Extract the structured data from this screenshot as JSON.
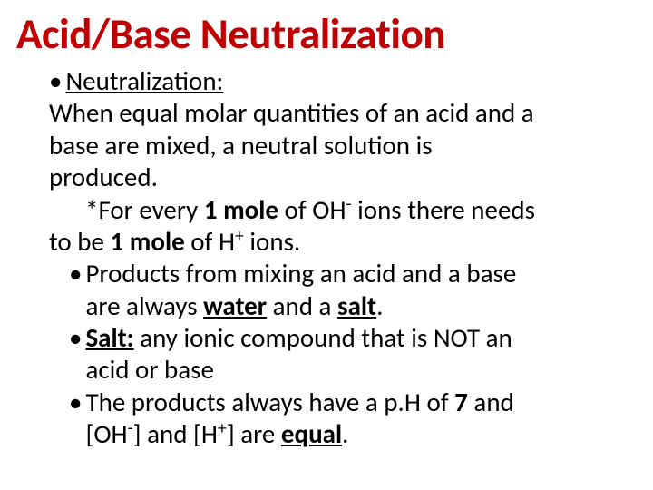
{
  "title_color": "#c00000",
  "text_color": "#000000",
  "background_color": "#ffffff",
  "title": "Acid/Base Neutralization",
  "main": {
    "term": "Neutralization:",
    "definition_l1": "When equal molar quantities of an acid and a",
    "definition_l2": "base are mixed, a neutral solution is",
    "definition_l3": "produced.",
    "note_l1_pre": "*For every ",
    "note_l1_bold1": "1 mole",
    "note_l1_mid": " of OH",
    "note_l1_sup1": "-",
    "note_l1_post": " ions there needs",
    "note_l2_pre": "to be ",
    "note_l2_bold1": "1 mole",
    "note_l2_mid": " of H",
    "note_l2_sup1": "+",
    "note_l2_post": " ions.",
    "sub1_l1_a": "Products from mixing an acid and a base",
    "sub1_l2_a": "are always ",
    "sub1_l2_b": "water",
    "sub1_l2_c": " and a ",
    "sub1_l2_d": "salt",
    "sub1_l2_e": ".",
    "sub2_l1_a": "Salt:",
    "sub2_l1_b": " any ionic compound that is NOT an",
    "sub2_l2_a": "acid or base",
    "sub3_l1_a": "The products always have a p.H of ",
    "sub3_l1_b": "7",
    "sub3_l1_c": " and",
    "sub3_l2_a": "[OH",
    "sub3_l2_sup1": "-",
    "sub3_l2_b": "] and [H",
    "sub3_l2_sup2": "+",
    "sub3_l2_c": "] are ",
    "sub3_l2_d": "equal",
    "sub3_l2_e": "."
  }
}
